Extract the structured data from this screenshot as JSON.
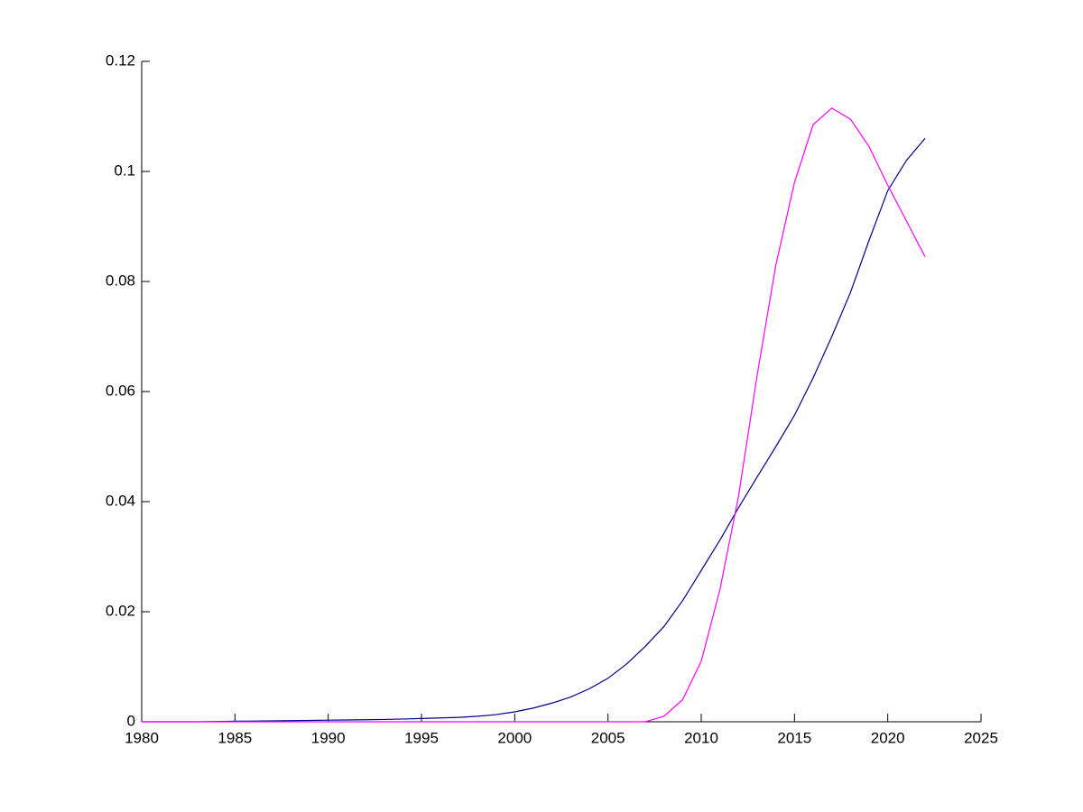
{
  "chart_data": {
    "type": "line",
    "x": [
      1980,
      1981,
      1982,
      1983,
      1984,
      1985,
      1986,
      1987,
      1988,
      1989,
      1990,
      1991,
      1992,
      1993,
      1994,
      1995,
      1996,
      1997,
      1998,
      1999,
      2000,
      2001,
      2002,
      2003,
      2004,
      2005,
      2006,
      2007,
      2008,
      2009,
      2010,
      2011,
      2012,
      2013,
      2014,
      2015,
      2016,
      2017,
      2018,
      2019,
      2020,
      2021,
      2022
    ],
    "series": [
      {
        "color": "#00008b",
        "values": [
          0,
          0,
          0,
          0,
          5e-05,
          0.0001,
          0.00013,
          0.00016,
          0.0002,
          0.00025,
          0.0003,
          0.00033,
          0.00037,
          0.00042,
          0.0005,
          0.0006,
          0.0007,
          0.0008,
          0.001,
          0.0013,
          0.0018,
          0.0025,
          0.0034,
          0.0045,
          0.006,
          0.0079,
          0.0105,
          0.0137,
          0.0173,
          0.022,
          0.0275,
          0.033,
          0.0389,
          0.0445,
          0.05,
          0.0557,
          0.0625,
          0.07,
          0.078,
          0.0875,
          0.0965,
          0.102,
          0.106
        ]
      },
      {
        "color": "#ff00ff",
        "values": [
          0,
          0,
          0,
          0,
          0,
          0,
          0,
          0,
          0,
          0,
          0,
          0,
          0,
          0,
          0,
          0,
          0,
          0,
          0,
          0,
          0,
          0,
          0,
          0,
          0,
          0,
          0,
          0,
          0.001,
          0.004,
          0.011,
          0.024,
          0.041,
          0.063,
          0.083,
          0.098,
          0.1085,
          0.1115,
          0.1095,
          0.1045,
          0.0975,
          0.091,
          0.0845
        ]
      }
    ],
    "xlim": [
      1980,
      2025
    ],
    "xticks": [
      1980,
      1985,
      1990,
      1995,
      2000,
      2005,
      2010,
      2015,
      2020,
      2025
    ],
    "ylim": [
      0,
      0.12
    ],
    "yticks": [
      0,
      0.02,
      0.04,
      0.06,
      0.08,
      0.1,
      0.12
    ]
  }
}
